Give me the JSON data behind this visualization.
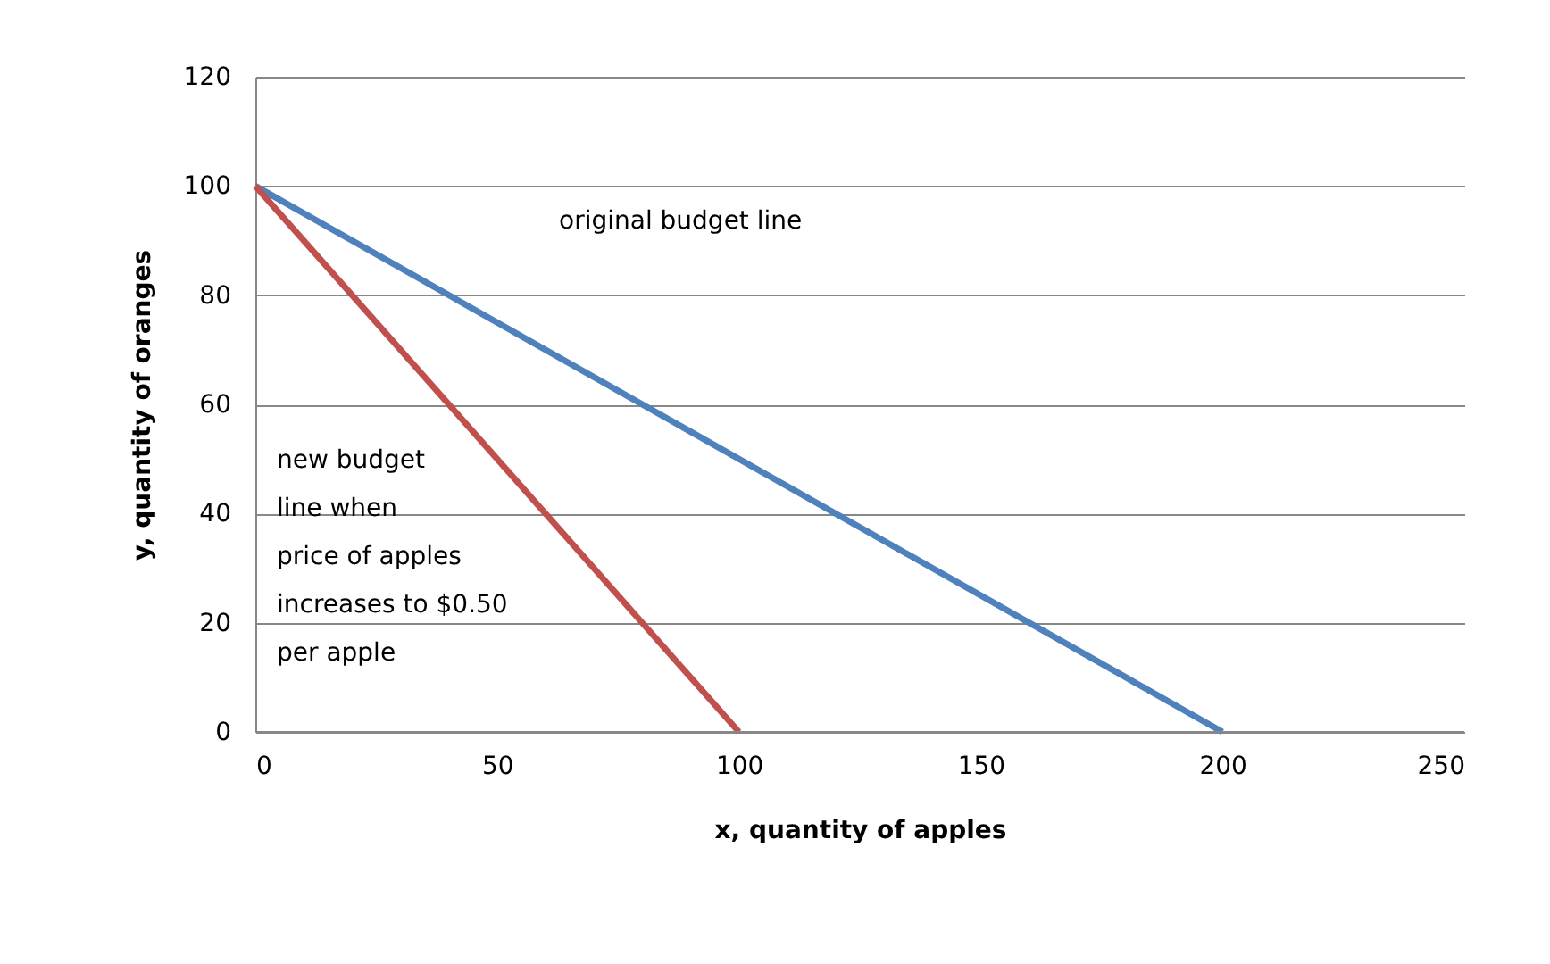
{
  "chart_data": {
    "type": "line",
    "xlabel": "x, quantity of apples",
    "ylabel": "y, quantity of oranges",
    "xlim": [
      0,
      250
    ],
    "xticks": [
      0,
      50,
      100,
      150,
      200,
      250
    ],
    "ylim": [
      0,
      120
    ],
    "yticks": [
      0,
      20,
      40,
      60,
      80,
      100,
      120
    ],
    "grid": "y",
    "marker": "none",
    "line_style": "solid",
    "series": [
      {
        "color": "#4f81bd",
        "x": [
          0,
          200
        ],
        "values": [
          100,
          0
        ]
      },
      {
        "color": "#c0504d",
        "x": [
          0,
          100
        ],
        "values": [
          100,
          0
        ]
      }
    ],
    "annotations": [
      "original budget line",
      "new budget\nline when\nprice of apples\nincreases to $0.50\nper apple"
    ]
  }
}
